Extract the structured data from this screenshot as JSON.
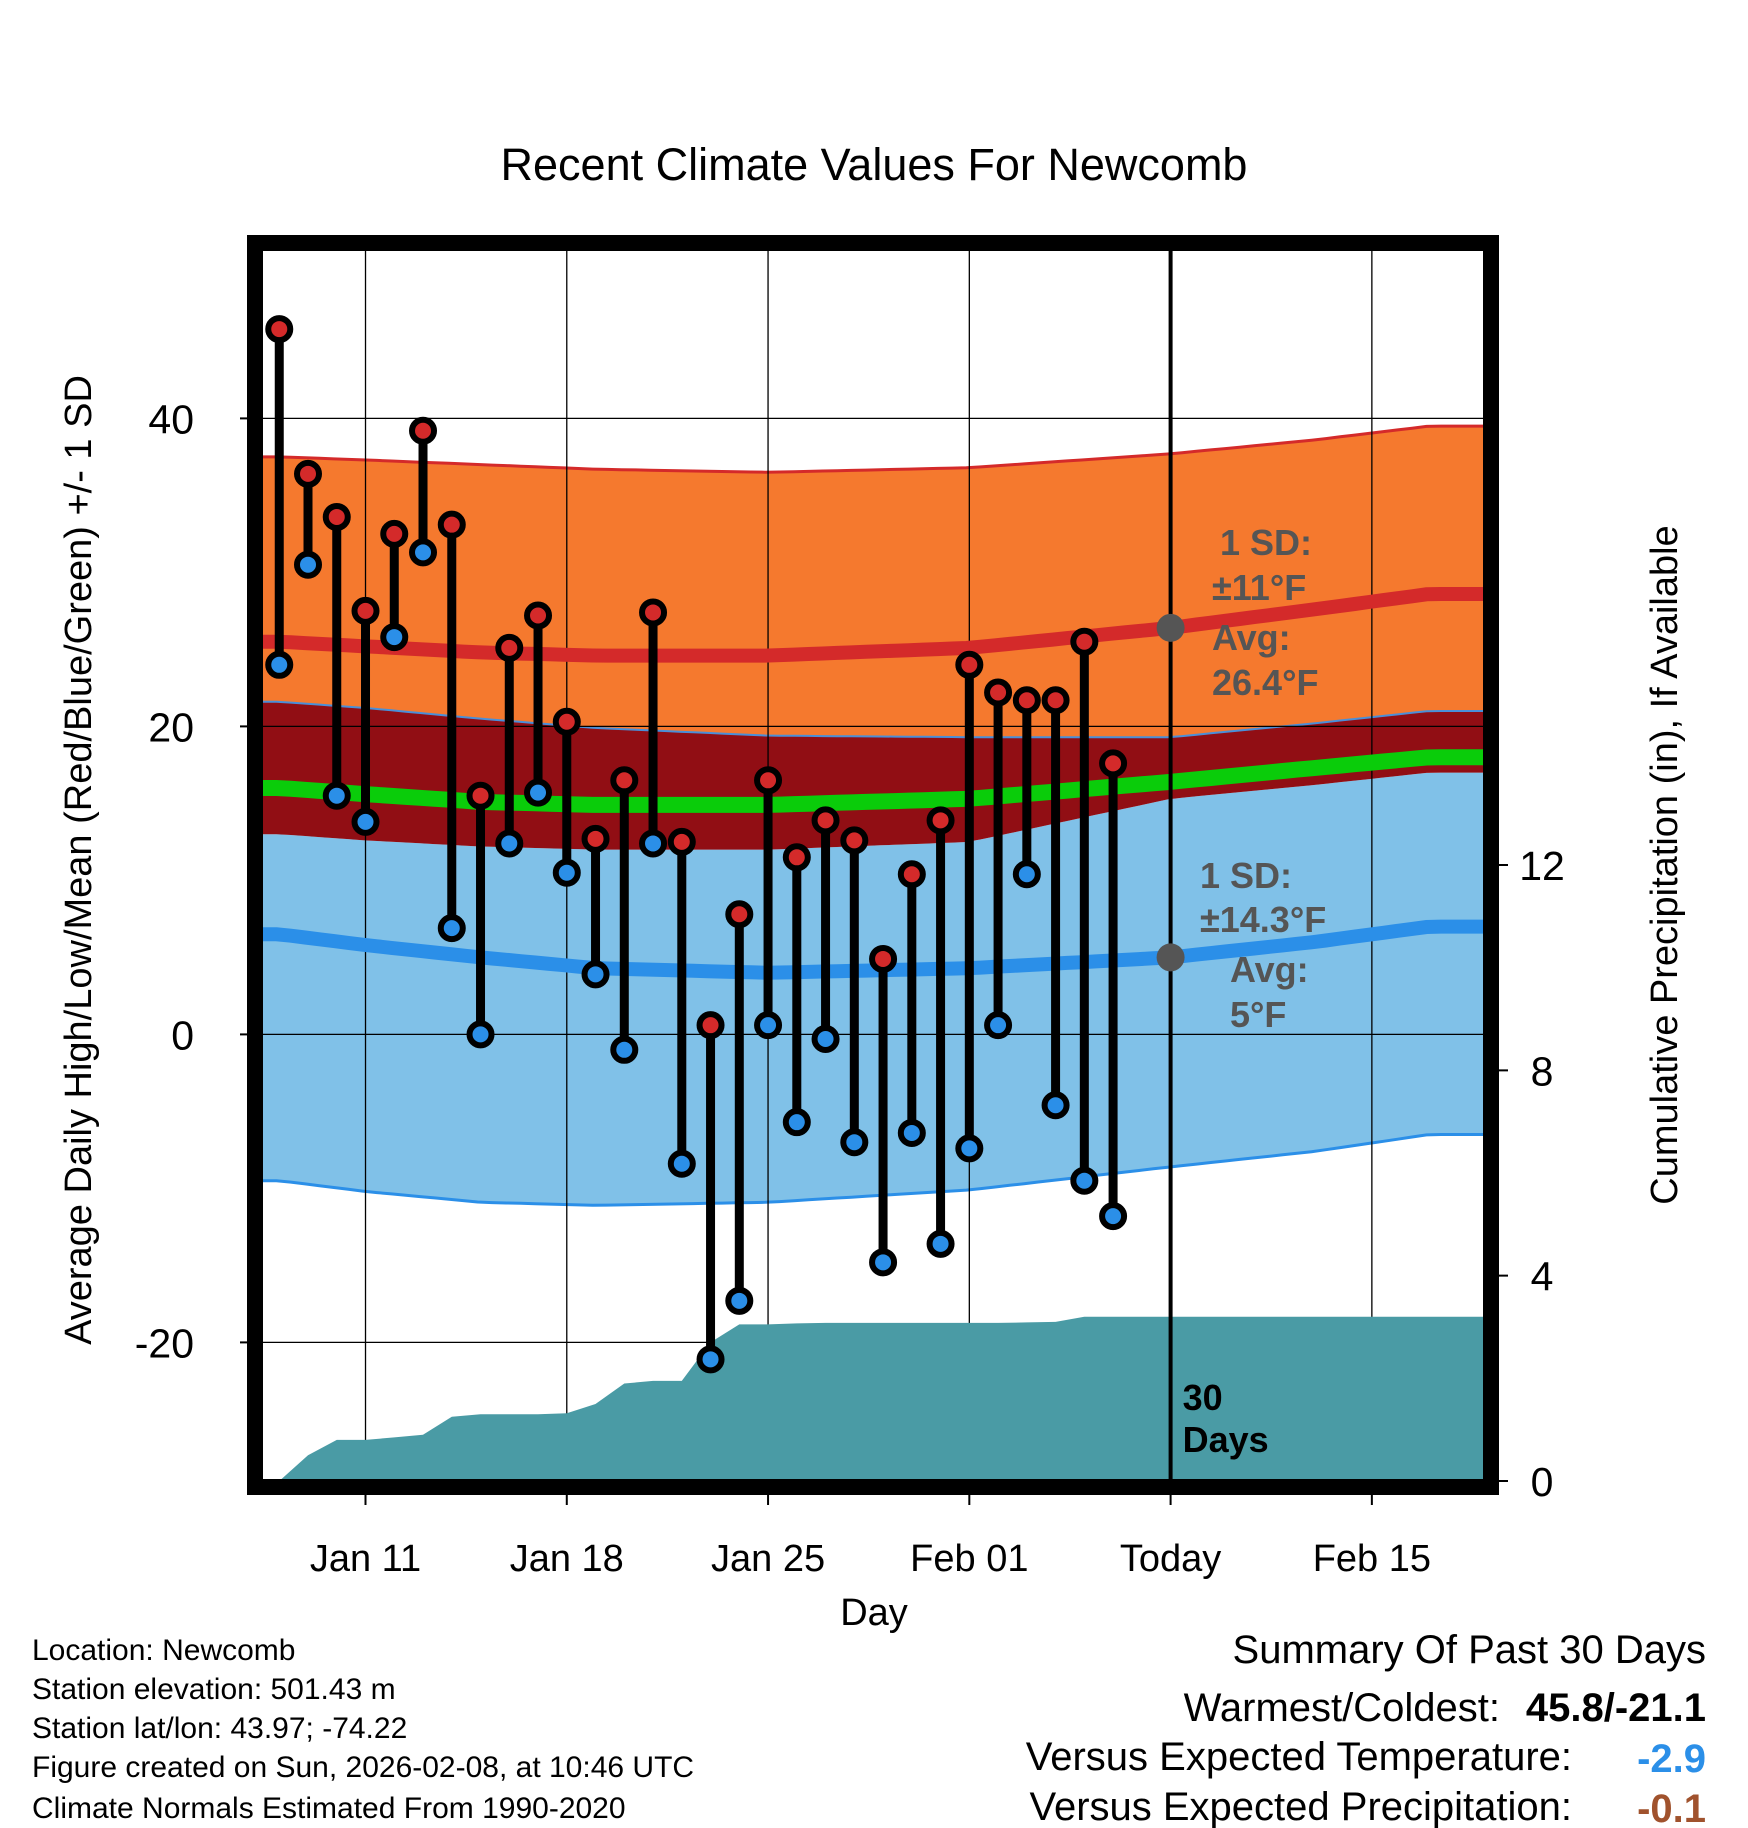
{
  "chart_data": {
    "type": "line",
    "title": "Recent Climate Values For Newcomb",
    "xlabel": "Day",
    "ylabel": "Average Daily High/Low/Mean (Red/Blue/Green) +/- 1 SD",
    "y2label": "Cumulative Precipitation (in), If Available",
    "ylim": [
      -29,
      51
    ],
    "y2lim": [
      0,
      24
    ],
    "xlim": [
      -1.6,
      40.9
    ],
    "x_ticks": [
      {
        "day": 2,
        "label": "Jan 11"
      },
      {
        "day": 9,
        "label": "Jan 18"
      },
      {
        "day": 16,
        "label": "Jan 25"
      },
      {
        "day": 23,
        "label": "Feb 01"
      },
      {
        "day": 30,
        "label": "Today"
      },
      {
        "day": 37,
        "label": "Feb 15"
      }
    ],
    "y_ticks": [
      -20,
      0,
      20,
      40
    ],
    "y2_ticks": [
      0,
      4,
      8,
      12
    ],
    "today_day": 30,
    "period_label": [
      "30",
      "Days"
    ],
    "colors": {
      "high": "#d42a2a",
      "low": "#2b8fe8",
      "mean": "#0acc0a",
      "high_band": "#f5792e",
      "low_band": "#80c1e8",
      "overlap": "#910e14",
      "precip": "#4a9ba5",
      "annotation": "#555555"
    },
    "normals": {
      "days": [
        -1,
        2,
        6,
        10,
        16,
        23,
        30,
        35,
        39
      ],
      "high_mean": [
        25.5,
        25.2,
        24.8,
        24.6,
        24.6,
        25.1,
        26.4,
        27.6,
        28.6
      ],
      "high_upper": [
        37.5,
        37.3,
        37.0,
        36.7,
        36.5,
        36.8,
        37.7,
        38.6,
        39.5
      ],
      "high_lower": [
        21.6,
        21.2,
        20.5,
        19.9,
        19.4,
        19.3,
        19.3,
        20.2,
        21.0
      ],
      "mean": [
        16.0,
        15.6,
        15.1,
        14.9,
        14.9,
        15.3,
        16.4,
        17.3,
        18.0
      ],
      "low_mean": [
        6.5,
        5.8,
        5.0,
        4.3,
        4.0,
        4.3,
        5.0,
        6.0,
        7.0
      ],
      "low_upper": [
        13.0,
        12.6,
        12.2,
        12.0,
        12.0,
        12.5,
        15.3,
        16.2,
        17.0
      ],
      "low_lower": [
        -9.5,
        -10.2,
        -10.9,
        -11.1,
        -10.9,
        -10.1,
        -8.6,
        -7.6,
        -6.5
      ]
    },
    "series": [
      {
        "name": "High",
        "days": [
          -1,
          0,
          1,
          2,
          3,
          4,
          5,
          6,
          7,
          8,
          9,
          10,
          11,
          12,
          13,
          14,
          15,
          16,
          17,
          18,
          19,
          20,
          21,
          22,
          23,
          24,
          25,
          26,
          27,
          28,
          29
        ],
        "values": [
          45.8,
          36.4,
          33.6,
          27.5,
          32.5,
          39.2,
          33.1,
          15.5,
          25.1,
          27.2,
          20.3,
          12.7,
          16.5,
          27.4,
          12.5,
          0.6,
          7.8,
          16.5,
          11.5,
          13.9,
          12.6,
          4.9,
          10.4,
          13.9,
          24.0,
          22.2,
          21.7,
          21.7,
          25.5,
          17.6,
          null
        ]
      },
      {
        "name": "Low",
        "days": [
          -1,
          0,
          1,
          2,
          3,
          4,
          5,
          6,
          7,
          8,
          9,
          10,
          11,
          12,
          13,
          14,
          15,
          16,
          17,
          18,
          19,
          20,
          21,
          22,
          23,
          24,
          25,
          26,
          27,
          28,
          29
        ],
        "values": [
          24.0,
          30.5,
          15.5,
          13.8,
          25.8,
          31.3,
          6.9,
          0.0,
          12.4,
          15.7,
          10.5,
          3.9,
          -1.0,
          12.4,
          -8.4,
          -21.1,
          -17.3,
          0.6,
          -5.7,
          -0.3,
          -7.0,
          -14.8,
          -6.4,
          -13.6,
          -7.4,
          0.6,
          10.4,
          -4.6,
          -9.5,
          -11.8,
          null
        ]
      },
      {
        "name": "Cumulative Precipitation",
        "days": [
          -1,
          0,
          1,
          2,
          3,
          4,
          5,
          6,
          7,
          8,
          9,
          10,
          11,
          12,
          13,
          14,
          15,
          16,
          17,
          18,
          19,
          20,
          21,
          22,
          23,
          24,
          25,
          26,
          27,
          28,
          29,
          30,
          40.9
        ],
        "values": [
          0.0,
          0.5,
          0.8,
          0.8,
          0.85,
          0.9,
          1.25,
          1.3,
          1.3,
          1.3,
          1.32,
          1.5,
          1.9,
          1.95,
          1.95,
          2.7,
          3.05,
          3.05,
          3.07,
          3.08,
          3.08,
          3.08,
          3.08,
          3.08,
          3.08,
          3.08,
          3.09,
          3.1,
          3.2,
          3.2,
          3.2,
          3.2,
          3.2
        ]
      }
    ],
    "annotations": {
      "high": {
        "sd_label": "1 SD:",
        "sd_value": "±11°F",
        "avg_label": "Avg:",
        "avg_value": "26.4°F",
        "value": 26.4
      },
      "low": {
        "sd_label": "1 SD:",
        "sd_value": "±14.3°F",
        "avg_label": "Avg:",
        "avg_value": "5°F",
        "value": 5.0
      }
    }
  },
  "footer": {
    "location": "Location: Newcomb",
    "elevation": "Station elevation: 501.43 m",
    "latlon": "Station lat/lon: 43.97; -74.22",
    "created": "Figure created on Sun, 2026-02-08, at 10:46 UTC",
    "normals": "Climate Normals Estimated From 1990-2020"
  },
  "summary": {
    "title": "Summary Of Past 30 Days",
    "warmest_label": "Warmest/Coldest:",
    "warmest_value": "45.8/-21.1",
    "temp_label": "Versus Expected Temperature:",
    "temp_value": "-2.9",
    "temp_color": "#2b8fe8",
    "precip_label": "Versus Expected Precipitation:",
    "precip_value": "-0.1",
    "precip_color": "#a0522d"
  }
}
